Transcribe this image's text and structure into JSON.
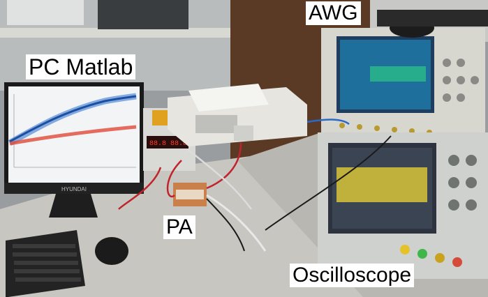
{
  "labels": {
    "awg": "AWG",
    "pc": "PC Matlab",
    "pa": "PA",
    "oscilloscope": "Oscilloscope"
  },
  "monitor": {
    "brand": "HYUNDAI"
  },
  "colors": {
    "label_bg": "#ffffff",
    "label_text": "#000000",
    "trace_blue": "#2a6fcf",
    "trace_red": "#e04a3a",
    "awg_screen": "#1f6f9c",
    "scope_trace": "#d8c43a"
  }
}
